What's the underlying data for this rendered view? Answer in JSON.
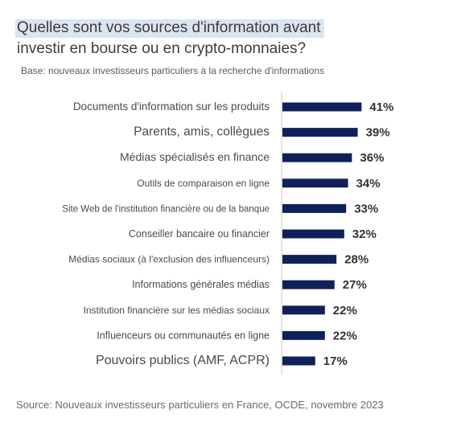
{
  "title": {
    "line1": "Quelles sont vos sources d'information avant",
    "line2": "investir en bourse ou en crypto-monnaies?"
  },
  "subtitle": "Base: nouveaux investisseurs particuliers à la recherche d'informations",
  "source": "Source: Nouveaux investisseurs particuliers en France, OCDE, novembre 2023",
  "colors": {
    "bar": "#0f2158",
    "axis": "#c8c8c8",
    "label": "#4a4a4a",
    "value": "#333333"
  },
  "chart_data": {
    "type": "bar",
    "orientation": "horizontal",
    "categories": [
      "Documents d'information sur les produits",
      "Parents, amis, collègues",
      "Médias spécialisés en finance",
      "Outils de comparaison en ligne",
      "Site Web de l'institution financière ou de la banque",
      "Conseiller bancaire ou financier",
      "Médias sociaux (à l'exclusion des influenceurs)",
      "Informations générales médias",
      "Institution financière sur les médias sociaux",
      "Influenceurs ou communautés en ligne",
      "Pouvoirs publics (AMF, ACPR)"
    ],
    "values": [
      41,
      39,
      36,
      34,
      33,
      32,
      28,
      27,
      22,
      22,
      17
    ],
    "value_labels": [
      "41%",
      "39%",
      "36%",
      "34%",
      "33%",
      "32%",
      "28%",
      "27%",
      "22%",
      "22%",
      "17%"
    ],
    "unit": "%",
    "xlim": [
      0,
      100
    ],
    "grid": false,
    "legend": "none"
  }
}
